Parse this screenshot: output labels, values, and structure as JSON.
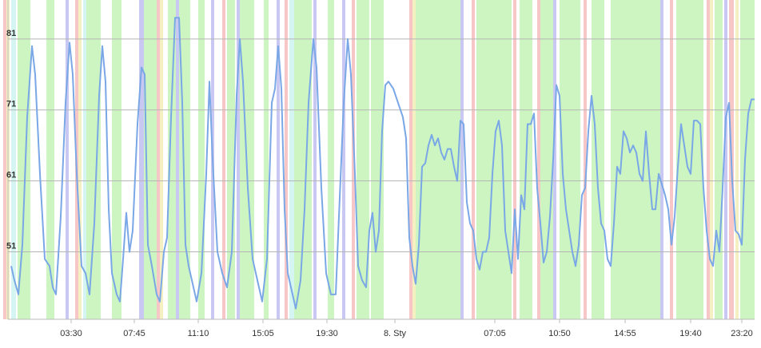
{
  "chart_data": {
    "type": "line",
    "xlim": [
      10,
      944
    ],
    "ylim": [
      41.5,
      86.5
    ],
    "yticks": [
      51,
      61,
      71,
      81
    ],
    "xticks": [
      {
        "value": 89,
        "label": "03:30"
      },
      {
        "value": 168,
        "label": "07:45"
      },
      {
        "value": 248,
        "label": "11:10"
      },
      {
        "value": 329,
        "label": "15:05"
      },
      {
        "value": 409,
        "label": "19:30"
      },
      {
        "value": 494,
        "label": "8. Sty"
      },
      {
        "value": 619,
        "label": "07:05"
      },
      {
        "value": 700,
        "label": "10:50"
      },
      {
        "value": 782,
        "label": "14:55"
      },
      {
        "value": 864,
        "label": "19:40"
      },
      {
        "value": 928,
        "label": "23:20"
      }
    ],
    "grid": true,
    "series": [
      {
        "color": "#7aa7e6",
        "x": [
          14,
          18,
          23,
          28,
          34,
          40,
          44,
          50,
          56,
          62,
          66,
          70,
          76,
          82,
          87,
          91,
          96,
          102,
          107,
          112,
          118,
          124,
          128,
          132,
          136,
          140,
          146,
          150,
          154,
          158,
          162,
          166,
          172,
          177,
          181,
          185,
          190,
          196,
          200,
          205,
          209,
          214,
          219,
          224,
          228,
          232,
          236,
          242,
          246,
          252,
          258,
          262,
          266,
          272,
          278,
          284,
          290,
          296,
          300,
          304,
          310,
          316,
          322,
          328,
          334,
          340,
          344,
          348,
          352,
          356,
          360,
          364,
          370,
          376,
          381,
          386,
          392,
          396,
          402,
          408,
          414,
          420,
          424,
          430,
          435,
          439,
          444,
          448,
          453,
          458,
          462,
          466,
          470,
          474,
          478,
          482,
          486,
          492,
          498,
          504,
          508,
          512,
          516,
          520,
          524,
          528,
          532,
          536,
          540,
          544,
          548,
          552,
          556,
          560,
          564,
          568,
          572,
          576,
          580,
          584,
          588,
          592,
          596,
          600,
          604,
          608,
          612,
          616,
          620,
          624,
          628,
          632,
          636,
          640,
          644,
          648,
          652,
          656,
          660,
          664,
          668,
          672,
          676,
          680,
          684,
          688,
          692,
          696,
          700,
          704,
          708,
          712,
          716,
          720,
          724,
          728,
          732,
          736,
          740,
          744,
          748,
          752,
          756,
          760,
          764,
          768,
          772,
          776,
          780,
          784,
          788,
          792,
          796,
          800,
          804,
          808,
          812,
          816,
          820,
          824,
          828,
          832,
          836,
          840,
          844,
          848,
          852,
          856,
          860,
          864,
          868,
          872,
          876,
          880,
          884,
          888,
          892,
          896,
          900,
          904,
          908,
          912,
          916,
          920,
          924,
          928,
          932,
          936,
          940,
          944
        ],
        "values": [
          49,
          47,
          45,
          52,
          70,
          80,
          76,
          62,
          50,
          49,
          46,
          45,
          56,
          72,
          80.5,
          76,
          62,
          49,
          48,
          45,
          55,
          73,
          80,
          75,
          57,
          48,
          45,
          44,
          50,
          56.5,
          51,
          54,
          69,
          77,
          76,
          52,
          49,
          45,
          44,
          51,
          53,
          70,
          84,
          84,
          72,
          52,
          49,
          46,
          44,
          48,
          62,
          75,
          64,
          51,
          48,
          46,
          51,
          73,
          81,
          75,
          60,
          50,
          47,
          44,
          50,
          72,
          74,
          80,
          74,
          57,
          48,
          46,
          43,
          47,
          57,
          72,
          81,
          77,
          60,
          48,
          45,
          45,
          56,
          72,
          81,
          76,
          62,
          49,
          47,
          46,
          54,
          56.5,
          51,
          54,
          68,
          74.5,
          75,
          74,
          72,
          70,
          67,
          53,
          49,
          46.5,
          52,
          63,
          63.5,
          66,
          67.5,
          66,
          67,
          65,
          64,
          65.5,
          65.5,
          63,
          61,
          69.5,
          69,
          58,
          55,
          54,
          50,
          48.5,
          51,
          51,
          53,
          62,
          68,
          69.5,
          66,
          54,
          51,
          48,
          57,
          50,
          59,
          57,
          69,
          69,
          70.5,
          60,
          55,
          49.5,
          51,
          56,
          64,
          74.5,
          73,
          62,
          57,
          54,
          51,
          49,
          52,
          59,
          60,
          68,
          73,
          69,
          60,
          55,
          54,
          50,
          49,
          55,
          63,
          62,
          68,
          67,
          65,
          66,
          65,
          62,
          61,
          68,
          62,
          57,
          57,
          62,
          60.5,
          59,
          57,
          52,
          56,
          63,
          69,
          66,
          63,
          62,
          69.5,
          69.5,
          69,
          60,
          54,
          50,
          49,
          54,
          51,
          60,
          70,
          72,
          61,
          54,
          53.5,
          52,
          64,
          70.5,
          72.5,
          72.5
        ]
      }
    ],
    "bands": [
      {
        "from": 4,
        "to": 8,
        "color": "#f7c6c6"
      },
      {
        "from": 8,
        "to": 12,
        "color": "#f5f0c2"
      },
      {
        "from": 14,
        "to": 20,
        "color": "#d4f5f2"
      },
      {
        "from": 22,
        "to": 38,
        "color": "#ccf5c2"
      },
      {
        "from": 58,
        "to": 68,
        "color": "#ccf5c2"
      },
      {
        "from": 82,
        "to": 86,
        "color": "#c8c8f2"
      },
      {
        "from": 94,
        "to": 98,
        "color": "#f7c6c6"
      },
      {
        "from": 98,
        "to": 102,
        "color": "#f5f0c2"
      },
      {
        "from": 104,
        "to": 108,
        "color": "#d4f5f2"
      },
      {
        "from": 108,
        "to": 126,
        "color": "#ccf5c2"
      },
      {
        "from": 140,
        "to": 152,
        "color": "#ccf5c2"
      },
      {
        "from": 174,
        "to": 180,
        "color": "#c8c8f2"
      },
      {
        "from": 180,
        "to": 196,
        "color": "#ccf5c2"
      },
      {
        "from": 196,
        "to": 200,
        "color": "#f7c6c6"
      },
      {
        "from": 200,
        "to": 204,
        "color": "#f5f0c2"
      },
      {
        "from": 210,
        "to": 220,
        "color": "#ccf5c2"
      },
      {
        "from": 220,
        "to": 224,
        "color": "#c8c8f2"
      },
      {
        "from": 224,
        "to": 238,
        "color": "#ccf5c2"
      },
      {
        "from": 248,
        "to": 256,
        "color": "#ccf5c2"
      },
      {
        "from": 264,
        "to": 268,
        "color": "#c8c8f2"
      },
      {
        "from": 278,
        "to": 282,
        "color": "#f7c6c6"
      },
      {
        "from": 284,
        "to": 294,
        "color": "#ccf5c2"
      },
      {
        "from": 296,
        "to": 300,
        "color": "#c8c8f2"
      },
      {
        "from": 300,
        "to": 318,
        "color": "#ccf5c2"
      },
      {
        "from": 330,
        "to": 336,
        "color": "#ccf5c2"
      },
      {
        "from": 346,
        "to": 350,
        "color": "#c8c8f2"
      },
      {
        "from": 356,
        "to": 360,
        "color": "#f7c6c6"
      },
      {
        "from": 362,
        "to": 368,
        "color": "#d4f5f2"
      },
      {
        "from": 368,
        "to": 390,
        "color": "#ccf5c2"
      },
      {
        "from": 392,
        "to": 396,
        "color": "#c8c8f2"
      },
      {
        "from": 410,
        "to": 418,
        "color": "#ccf5c2"
      },
      {
        "from": 428,
        "to": 432,
        "color": "#c8c8f2"
      },
      {
        "from": 440,
        "to": 444,
        "color": "#f7c6c6"
      },
      {
        "from": 446,
        "to": 462,
        "color": "#ccf5c2"
      },
      {
        "from": 464,
        "to": 480,
        "color": "#ccf5c2"
      },
      {
        "from": 512,
        "to": 516,
        "color": "#f7c6c6"
      },
      {
        "from": 516,
        "to": 520,
        "color": "#f5f0c2"
      },
      {
        "from": 520,
        "to": 576,
        "color": "#ccf5c2"
      },
      {
        "from": 576,
        "to": 580,
        "color": "#c8c8f2"
      },
      {
        "from": 590,
        "to": 594,
        "color": "#f7c6c6"
      },
      {
        "from": 596,
        "to": 640,
        "color": "#ccf5c2"
      },
      {
        "from": 642,
        "to": 646,
        "color": "#f7c6c6"
      },
      {
        "from": 650,
        "to": 666,
        "color": "#ccf5c2"
      },
      {
        "from": 672,
        "to": 676,
        "color": "#f7c6c6"
      },
      {
        "from": 676,
        "to": 692,
        "color": "#ccf5c2"
      },
      {
        "from": 692,
        "to": 696,
        "color": "#c8c8f2"
      },
      {
        "from": 700,
        "to": 726,
        "color": "#ccf5c2"
      },
      {
        "from": 730,
        "to": 734,
        "color": "#f7c6c6"
      },
      {
        "from": 740,
        "to": 756,
        "color": "#ccf5c2"
      },
      {
        "from": 764,
        "to": 826,
        "color": "#ccf5c2"
      },
      {
        "from": 826,
        "to": 830,
        "color": "#c8c8f2"
      },
      {
        "from": 838,
        "to": 842,
        "color": "#f7c6c6"
      },
      {
        "from": 846,
        "to": 880,
        "color": "#ccf5c2"
      },
      {
        "from": 884,
        "to": 888,
        "color": "#f7c6c6"
      },
      {
        "from": 888,
        "to": 892,
        "color": "#f5f0c2"
      },
      {
        "from": 894,
        "to": 904,
        "color": "#ccf5c2"
      },
      {
        "from": 906,
        "to": 910,
        "color": "#c8c8f2"
      },
      {
        "from": 912,
        "to": 918,
        "color": "#f7c6c6"
      },
      {
        "from": 920,
        "to": 924,
        "color": "#f5f0c2"
      },
      {
        "from": 926,
        "to": 944,
        "color": "#ccf5c2"
      }
    ]
  }
}
